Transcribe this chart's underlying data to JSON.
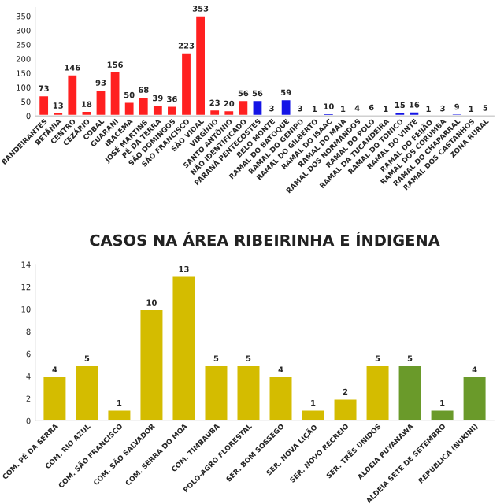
{
  "chart_data": [
    {
      "type": "bar",
      "categories": [
        "BANDEIRANTES",
        "BETÂNIA",
        "CENTRO",
        "CEZÁRIO",
        "COBAL",
        "GUARANI",
        "IRACEMA",
        "JOSÉ MARTINS",
        "PÉ DA TERRA",
        "SÃO DOMINGOS",
        "SÃO FRANCISCO",
        "SÃO VIDAL",
        "VIRGÍNIO",
        "SANTO ANTÔNIO",
        "NÃO IDENTIFICADO",
        "PARANÁ PENTECOSTES",
        "BELO MONTE",
        "RAMAL DO BATOQUE",
        "RAMAL DO GENIPO",
        "RAMAL DO GILBERTO",
        "RAMAL DO ISAAC",
        "RAMAL DO MAIA",
        "RAMAL DOS NORMANDOS",
        "RAMAL DO POLO",
        "RAMAL DA TUCANDEIRA",
        "RAMAL DO TONICO",
        "RAMAL DO VINTE",
        "RAMAL DO FEIJÃO",
        "RAMAL DOS CORUMBA",
        "RAMAL DO CHAPARRAL",
        "RAMAL DOS CASTANHOS",
        "ZONA RURAL"
      ],
      "values": [
        73,
        13,
        146,
        18,
        93,
        156,
        50,
        68,
        39,
        36,
        223,
        353,
        23,
        20,
        56,
        56,
        3,
        59,
        3,
        1,
        10,
        1,
        4,
        6,
        1,
        15,
        16,
        1,
        3,
        9,
        1,
        5
      ],
      "colors": [
        "#ff2020",
        "#ff2020",
        "#ff2020",
        "#ff2020",
        "#ff2020",
        "#ff2020",
        "#ff2020",
        "#ff2020",
        "#ff2020",
        "#ff2020",
        "#ff2020",
        "#ff2020",
        "#ff2020",
        "#ff2020",
        "#ff2020",
        "#1414e6",
        "#1414e6",
        "#1414e6",
        "#1414e6",
        "#1414e6",
        "#1414e6",
        "#1414e6",
        "#1414e6",
        "#1414e6",
        "#1414e6",
        "#1414e6",
        "#1414e6",
        "#1414e6",
        "#1414e6",
        "#1414e6",
        "#1414e6",
        "#f08080"
      ],
      "data_labels": true,
      "ylim": [
        0,
        380
      ],
      "yticks": [
        0,
        50,
        100,
        150,
        200,
        250,
        300,
        350
      ],
      "grid": false
    },
    {
      "type": "bar",
      "title": "CASOS NA ÁREA RIBEIRINHA E ÍNDIGENA",
      "categories": [
        "COM. PÉ DA SERRA",
        "COM. RIO AZUL",
        "COM. SÃO FRANCISCO",
        "COM. SÃO SALVADOR",
        "COM. SERRA DO MOA",
        "COM. TIMBAÚBA",
        "POLO-AGRO FLORESTAL",
        "SER. BOM SOSSEGO",
        "SER. NOVA LIÇÃO",
        "SER. NOVO RECREIO",
        "SER. TRÊS UNIDOS",
        "ALDEIA PUYANAWA",
        "ALDEIA SETE DE SETEMBRO",
        "REPUBLICA (NUKINI)"
      ],
      "values": [
        4,
        5,
        1,
        10,
        13,
        5,
        5,
        4,
        1,
        2,
        5,
        5,
        1,
        4
      ],
      "colors": [
        "#d4bc00",
        "#d4bc00",
        "#d4bc00",
        "#d4bc00",
        "#d4bc00",
        "#d4bc00",
        "#d4bc00",
        "#d4bc00",
        "#d4bc00",
        "#d4bc00",
        "#d4bc00",
        "#6a9a2a",
        "#6a9a2a",
        "#6a9a2a"
      ],
      "data_labels": true,
      "ylim": [
        0,
        14
      ],
      "yticks": [
        0,
        2,
        4,
        6,
        8,
        10,
        12,
        14
      ],
      "grid": false
    }
  ]
}
